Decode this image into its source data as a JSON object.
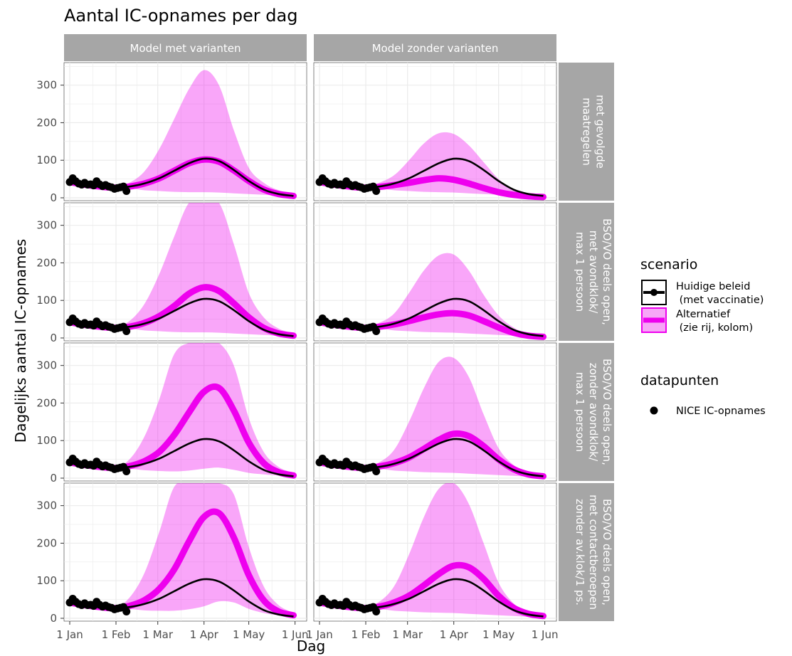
{
  "chart_data": {
    "type": "line",
    "title": "Aantal IC-opnames per dag",
    "xlabel": "Dag",
    "ylabel": "Dagelijks aantal IC-opnames",
    "x_ticks": [
      "1 Jan",
      "1 Feb",
      "1 Mar",
      "1 Apr",
      "1 May",
      "1 Jun"
    ],
    "x_ticks_last_col": [
      "1 Jan",
      "1 Feb",
      "1 Mar",
      "1 Apr",
      "1 May",
      "1 Jun"
    ],
    "y_ticks": [
      0,
      100,
      200,
      300
    ],
    "ylim": [
      0,
      360
    ],
    "col_labels": [
      "Model met varianten",
      "Model zonder varianten"
    ],
    "row_labels": [
      [
        "met gevolgde",
        "maatregelen"
      ],
      [
        "BSO/VO deels open,",
        "met avondklok/",
        "max 1 persoon"
      ],
      [
        "BSO/VO deels open,",
        "zonder avondklok/",
        "max 1 persoon"
      ],
      [
        "BSO/VO deels open,",
        "met contactberoepen",
        "zonder av.klok/1 ps."
      ]
    ],
    "legend": {
      "scenario_title": "scenario",
      "baseline_label_1": "Huidige beleid",
      "baseline_label_2": " (met vaccinatie)",
      "alt_label_1": "Alternatief",
      "alt_label_2": " (zie rij, kolom)",
      "data_title": "datapunten",
      "data_label": "NICE IC-opnames"
    },
    "colors": {
      "baseline": "#000000",
      "alternative": "#ee00ee",
      "band": "#ee00ee",
      "strip": "#a6a6a6",
      "grid": "#ebebeb"
    },
    "observed": {
      "name": "NICE IC-opnames",
      "x": [
        0,
        2,
        4,
        6,
        8,
        10,
        12,
        14,
        16,
        18,
        20,
        22,
        24,
        26,
        28,
        30,
        32,
        34,
        36,
        38
      ],
      "y": [
        42,
        52,
        44,
        38,
        35,
        40,
        35,
        36,
        33,
        44,
        36,
        31,
        34,
        30,
        28,
        24,
        26,
        28,
        30,
        18
      ]
    },
    "baseline": {
      "name": "Huidige beleid (met vaccinatie)",
      "x": [
        0,
        10,
        20,
        30,
        40,
        50,
        60,
        70,
        80,
        90,
        100,
        110,
        120,
        130,
        140,
        150
      ],
      "y": [
        42,
        35,
        30,
        27,
        30,
        38,
        52,
        72,
        92,
        104,
        98,
        74,
        45,
        22,
        10,
        5
      ]
    },
    "panels": [
      {
        "col": 0,
        "row": 0,
        "x": [
          0,
          10,
          20,
          30,
          40,
          50,
          60,
          70,
          80,
          90,
          100,
          110,
          120,
          130,
          140,
          150
        ],
        "alt": [
          42,
          35,
          30,
          27,
          30,
          38,
          52,
          72,
          92,
          102,
          96,
          73,
          45,
          22,
          10,
          5
        ],
        "lo": [
          42,
          35,
          30,
          27,
          25,
          20,
          18,
          16,
          15,
          15,
          14,
          12,
          10,
          8,
          6,
          4
        ],
        "hi": [
          42,
          35,
          30,
          27,
          40,
          70,
          130,
          210,
          290,
          340,
          300,
          180,
          80,
          40,
          20,
          10
        ]
      },
      {
        "col": 1,
        "row": 0,
        "x": [
          0,
          10,
          20,
          30,
          40,
          50,
          60,
          70,
          80,
          90,
          100,
          110,
          120,
          130,
          140,
          150
        ],
        "alt": [
          42,
          35,
          30,
          27,
          29,
          34,
          40,
          47,
          52,
          48,
          38,
          26,
          15,
          8,
          4,
          2
        ],
        "lo": [
          42,
          35,
          30,
          27,
          25,
          20,
          18,
          16,
          15,
          14,
          12,
          10,
          8,
          6,
          4,
          3
        ],
        "hi": [
          42,
          35,
          30,
          27,
          40,
          60,
          100,
          145,
          172,
          170,
          140,
          95,
          50,
          22,
          10,
          5
        ]
      },
      {
        "col": 0,
        "row": 1,
        "x": [
          0,
          10,
          20,
          30,
          40,
          50,
          60,
          70,
          80,
          90,
          100,
          110,
          120,
          130,
          140,
          150
        ],
        "alt": [
          42,
          35,
          30,
          27,
          30,
          40,
          58,
          85,
          118,
          135,
          125,
          92,
          55,
          27,
          12,
          6
        ],
        "lo": [
          42,
          35,
          30,
          27,
          25,
          20,
          18,
          16,
          15,
          15,
          14,
          12,
          10,
          8,
          6,
          4
        ],
        "hi": [
          42,
          35,
          30,
          27,
          45,
          90,
          170,
          270,
          360,
          380,
          360,
          250,
          120,
          55,
          25,
          12
        ]
      },
      {
        "col": 1,
        "row": 1,
        "x": [
          0,
          10,
          20,
          30,
          40,
          50,
          60,
          70,
          80,
          90,
          100,
          110,
          120,
          130,
          140,
          150
        ],
        "alt": [
          42,
          35,
          30,
          27,
          30,
          36,
          45,
          55,
          63,
          66,
          60,
          45,
          28,
          14,
          6,
          3
        ],
        "lo": [
          42,
          35,
          30,
          27,
          25,
          20,
          18,
          16,
          15,
          14,
          12,
          10,
          8,
          6,
          4,
          3
        ],
        "hi": [
          42,
          35,
          30,
          27,
          40,
          65,
          120,
          180,
          220,
          222,
          180,
          115,
          60,
          28,
          12,
          6
        ]
      },
      {
        "col": 0,
        "row": 2,
        "x": [
          0,
          10,
          20,
          30,
          40,
          50,
          60,
          70,
          80,
          90,
          100,
          110,
          120,
          130,
          140,
          150
        ],
        "alt": [
          42,
          35,
          30,
          27,
          32,
          45,
          70,
          115,
          175,
          230,
          240,
          180,
          95,
          40,
          16,
          7
        ],
        "lo": [
          42,
          35,
          30,
          27,
          25,
          21,
          19,
          18,
          20,
          25,
          28,
          22,
          14,
          10,
          7,
          5
        ],
        "hi": [
          42,
          35,
          30,
          27,
          50,
          110,
          210,
          330,
          380,
          390,
          380,
          300,
          160,
          70,
          30,
          14
        ]
      },
      {
        "col": 1,
        "row": 2,
        "x": [
          0,
          10,
          20,
          30,
          40,
          50,
          60,
          70,
          80,
          90,
          100,
          110,
          120,
          130,
          140,
          150
        ],
        "alt": [
          42,
          35,
          30,
          27,
          31,
          40,
          55,
          78,
          102,
          118,
          112,
          85,
          50,
          24,
          10,
          5
        ],
        "lo": [
          42,
          35,
          30,
          27,
          25,
          20,
          18,
          16,
          15,
          14,
          12,
          10,
          8,
          6,
          4,
          3
        ],
        "hi": [
          42,
          35,
          30,
          27,
          42,
          75,
          150,
          240,
          310,
          320,
          270,
          170,
          80,
          35,
          15,
          7
        ]
      },
      {
        "col": 0,
        "row": 3,
        "x": [
          0,
          10,
          20,
          30,
          40,
          50,
          60,
          70,
          80,
          90,
          100,
          110,
          120,
          130,
          140,
          150
        ],
        "alt": [
          42,
          35,
          30,
          27,
          33,
          48,
          78,
          130,
          205,
          270,
          280,
          215,
          115,
          48,
          18,
          8
        ],
        "lo": [
          42,
          35,
          30,
          27,
          25,
          21,
          20,
          20,
          24,
          32,
          45,
          42,
          25,
          14,
          8,
          5
        ],
        "hi": [
          42,
          35,
          30,
          27,
          55,
          120,
          230,
          350,
          380,
          390,
          380,
          330,
          190,
          85,
          35,
          15
        ]
      },
      {
        "col": 1,
        "row": 3,
        "x": [
          0,
          10,
          20,
          30,
          40,
          50,
          60,
          70,
          80,
          90,
          100,
          110,
          120,
          130,
          140,
          150
        ],
        "alt": [
          42,
          35,
          30,
          27,
          31,
          42,
          60,
          88,
          118,
          140,
          136,
          105,
          60,
          28,
          12,
          6
        ],
        "lo": [
          42,
          35,
          30,
          27,
          25,
          20,
          18,
          16,
          15,
          14,
          12,
          10,
          8,
          6,
          4,
          3
        ],
        "hi": [
          42,
          35,
          30,
          27,
          44,
          85,
          170,
          270,
          345,
          360,
          305,
          200,
          95,
          40,
          16,
          8
        ]
      }
    ]
  }
}
